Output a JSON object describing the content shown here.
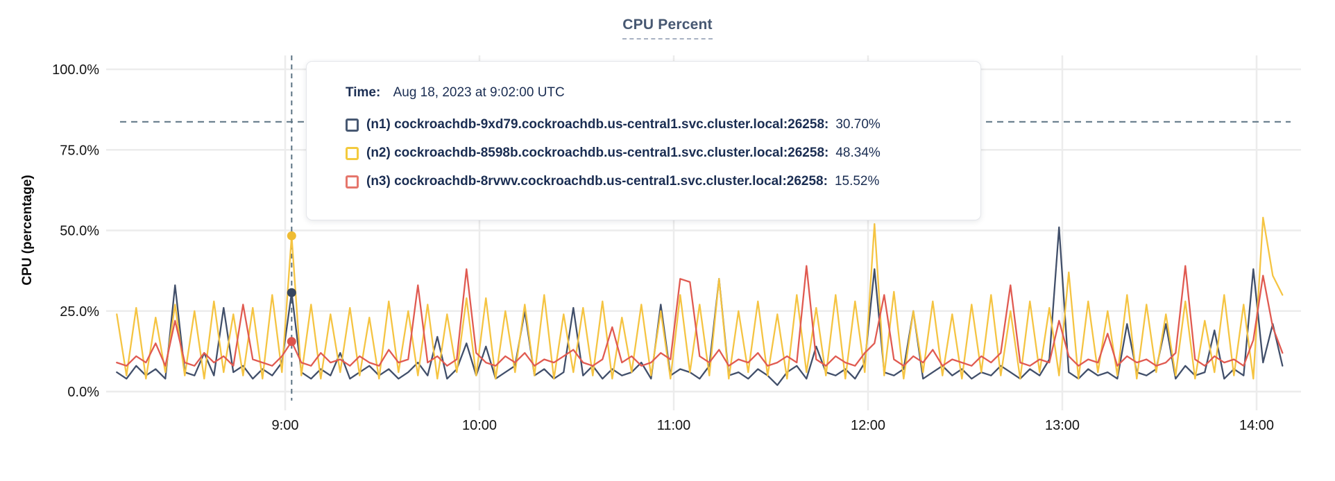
{
  "title": "CPU Percent",
  "tooltip": {
    "time_label": "Time:",
    "time_value": "Aug 18, 2023 at 9:02:00 UTC",
    "rows": [
      {
        "node": "(n1)",
        "address": "cockroachdb-9xd79.cockroachdb.us-central1.svc.cluster.local:26258:",
        "value": "30.70%",
        "swatch_color": "#475872"
      },
      {
        "node": "(n2)",
        "address": "cockroachdb-8598b.cockroachdb.us-central1.svc.cluster.local:26258:",
        "value": "48.34%",
        "swatch_color": "#f3ca3e"
      },
      {
        "node": "(n3)",
        "address": "cockroachdb-8rvwv.cockroachdb.us-central1.svc.cluster.local:26258:",
        "value": "15.52%",
        "swatch_color": "#e5766c"
      }
    ]
  },
  "colors": {
    "title": "#475872",
    "gridline": "#ececec",
    "dashed_guides": "#5b7282",
    "series_n1": "#414f6a",
    "series_n2": "#f5c442",
    "series_n3": "#e05a51"
  },
  "chart_data": {
    "type": "line",
    "title": "CPU Percent",
    "ylabel": "CPU (percentage)",
    "ylim": [
      0,
      100
    ],
    "grid": true,
    "y_ticks": [
      0,
      25,
      50,
      75,
      100
    ],
    "y_tick_labels": [
      "0.0%",
      "25.0%",
      "50.0%",
      "75.0%",
      "100.0%"
    ],
    "x_tick_minutes": [
      540,
      600,
      660,
      720,
      780,
      840
    ],
    "x_tick_labels": [
      "9:00",
      "10:00",
      "11:00",
      "12:00",
      "13:00",
      "14:00"
    ],
    "x_start_minutes": 488,
    "x_step_minutes": 3,
    "threshold_percent": 83.7,
    "hover": {
      "minutes": 542,
      "time_text": "Aug 18, 2023 at 9:02:00 UTC",
      "values": {
        "n1": 30.7,
        "n2": 48.34,
        "n3": 15.52
      }
    },
    "series": [
      {
        "id": "n1",
        "name": "(n1) cockroachdb-9xd79.cockroachdb.us-central1.svc.cluster.local:26258",
        "color": "#414f6a",
        "dot_color": "#37465f",
        "values": [
          6,
          4,
          8,
          5,
          7,
          4,
          33,
          6,
          5,
          12,
          5,
          26,
          6,
          8,
          4,
          7,
          5,
          9,
          30.7,
          6,
          4,
          7,
          5,
          12,
          4,
          6,
          8,
          5,
          7,
          4,
          6,
          9,
          5,
          17,
          4,
          7,
          15,
          5,
          14,
          4,
          6,
          8,
          25,
          5,
          7,
          4,
          6,
          26,
          5,
          8,
          4,
          7,
          5,
          6,
          9,
          4,
          27,
          5,
          7,
          6,
          4,
          8,
          35,
          5,
          6,
          4,
          7,
          5,
          2,
          6,
          8,
          4,
          14,
          6,
          5,
          7,
          4,
          9,
          38,
          6,
          5,
          7,
          25,
          4,
          6,
          8,
          5,
          7,
          4,
          6,
          5,
          8,
          6,
          4,
          7,
          5,
          10,
          51,
          6,
          4,
          7,
          5,
          6,
          4,
          21,
          6,
          5,
          7,
          21,
          4,
          8,
          5,
          6,
          19,
          4,
          7,
          5,
          38,
          9,
          21,
          8
        ]
      },
      {
        "id": "n2",
        "name": "(n2) cockroachdb-8598b.cockroachdb.us-central1.svc.cluster.local:26258",
        "color": "#f5c442",
        "dot_color": "#efbc33",
        "values": [
          24,
          5,
          26,
          4,
          23,
          6,
          27,
          5,
          25,
          4,
          28,
          6,
          24,
          5,
          26,
          4,
          30,
          6,
          48.3,
          5,
          27,
          4,
          24,
          6,
          26,
          5,
          23,
          4,
          28,
          6,
          25,
          5,
          27,
          4,
          24,
          6,
          29,
          5,
          29,
          4,
          25,
          6,
          27,
          5,
          30,
          4,
          24,
          6,
          26,
          5,
          28,
          4,
          23,
          6,
          27,
          5,
          25,
          4,
          30,
          6,
          27,
          5,
          35,
          4,
          25,
          6,
          28,
          5,
          24,
          4,
          30,
          6,
          26,
          5,
          30,
          4,
          28,
          6,
          52,
          5,
          31,
          4,
          25,
          6,
          28,
          5,
          24,
          4,
          27,
          6,
          30,
          5,
          25,
          4,
          28,
          6,
          26,
          5,
          37,
          4,
          28,
          6,
          25,
          5,
          30,
          4,
          27,
          6,
          24,
          5,
          28,
          4,
          22,
          6,
          30,
          5,
          27,
          4,
          54,
          36,
          30
        ]
      },
      {
        "id": "n3",
        "name": "(n3) cockroachdb-8rvwv.cockroachdb.us-central1.svc.cluster.local:26258",
        "color": "#e05a51",
        "dot_color": "#dd544b",
        "values": [
          9,
          8,
          11,
          9,
          15,
          8,
          22,
          9,
          8,
          12,
          9,
          11,
          8,
          27,
          10,
          9,
          8,
          11,
          15.5,
          9,
          8,
          12,
          9,
          10,
          8,
          11,
          9,
          8,
          13,
          9,
          10,
          33,
          9,
          11,
          8,
          10,
          38,
          12,
          9,
          8,
          11,
          9,
          12,
          8,
          10,
          9,
          11,
          13,
          9,
          8,
          10,
          20,
          9,
          11,
          8,
          9,
          12,
          10,
          35,
          34,
          11,
          9,
          13,
          8,
          10,
          9,
          12,
          8,
          9,
          11,
          9,
          39,
          10,
          8,
          11,
          9,
          8,
          12,
          15,
          30,
          10,
          8,
          11,
          9,
          13,
          8,
          10,
          9,
          8,
          11,
          9,
          12,
          33,
          9,
          8,
          10,
          9,
          22,
          11,
          8,
          10,
          9,
          18,
          8,
          11,
          9,
          10,
          8,
          9,
          12,
          39,
          10,
          8,
          11,
          9,
          10,
          8,
          16,
          36,
          20,
          12
        ]
      }
    ]
  }
}
